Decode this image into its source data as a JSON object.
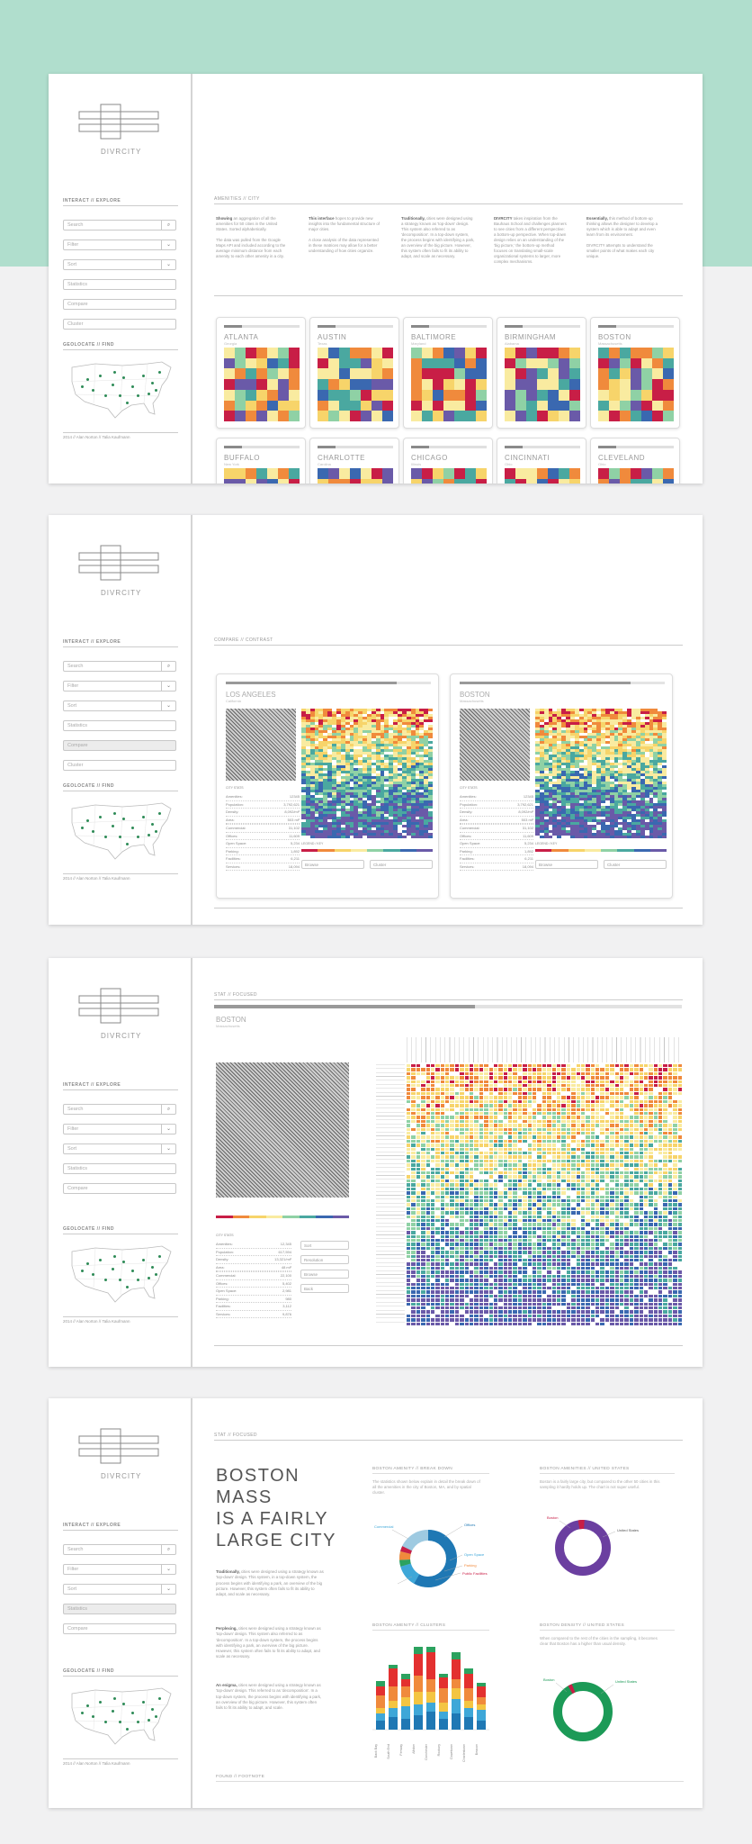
{
  "brand": "DIVRCITY",
  "sidebar": {
    "interact_label": "INTERACT // EXPLORE",
    "search": "Search",
    "filter": "Filter",
    "sort": "Sort",
    "statistics": "Statistics",
    "compare": "Compare",
    "cluster": "Cluster",
    "geolocate_label": "GEOLOCATE // FIND",
    "footer": "2014 // Alan Norton // Talia Kaufmann"
  },
  "icons": {
    "search": "search-icon",
    "chevron": "chevron-down-icon",
    "logo": "divrcity-logo"
  },
  "page1": {
    "header": "AMENITIES // CITY",
    "intro": [
      {
        "lead": "Showing",
        "text": "an aggregation of all the amenities for 50 cities in the United States. Sorted alphabetically.",
        "text2": "The data was pulled from the Google Maps API and included according to the average minimum distance from each amenity to each other amenity in a city."
      },
      {
        "lead": "This interface",
        "text": "hopes to provide new insights into the fundamental structure of major cities.",
        "text2": "A close analysis of the data represented in these matrices may allow for a better understanding of how cities organize."
      },
      {
        "lead": "Traditionally,",
        "text": "cities were designed using a strategy known as 'top-down' design. This system also referred to as 'decomposition'. In a top-down system, the process begins with identifying a park, an overview of the big picture. However, this system often fails to fit its ability to adapt, and scale as necessary."
      },
      {
        "lead": "DIVRCITY",
        "text": "takes inspiration from the Bauhaus School and challenges planners to see cities from a different perspective: a bottom-up perspective. When top-down design relies on an understanding of the 'big picture,' the bottom-up method focuses on translating small-scale organizational systems to larger, more complex mechanisms."
      },
      {
        "lead": "Essentially,",
        "text": "this method of bottom-up thinking allows the designer to develop a system which is able to adapt and even learn from its environment.",
        "text2": "DIVRCITY attempts to understand the smaller points of what makes each city unique."
      }
    ],
    "cities": [
      {
        "name": "ATLANTA",
        "state": "Georgia"
      },
      {
        "name": "AUSTIN",
        "state": "Texas"
      },
      {
        "name": "BALTIMORE",
        "state": "Maryland"
      },
      {
        "name": "BIRMINGHAM",
        "state": "Alabama"
      },
      {
        "name": "BOSTON",
        "state": "Massachusetts"
      },
      {
        "name": "BUFFALO",
        "state": "New York"
      },
      {
        "name": "CHARLOTTE",
        "state": "Carolina"
      },
      {
        "name": "CHICAGO",
        "state": "Illinois"
      },
      {
        "name": "CINCINNATI",
        "state": "Ohio"
      },
      {
        "name": "CLEVELAND",
        "state": "Ohio"
      }
    ]
  },
  "page2": {
    "header": "COMPARE // CONTRAST",
    "cities": [
      {
        "name": "LOS ANGELES",
        "state": "California"
      },
      {
        "name": "BOSTON",
        "state": "Massachusetts"
      }
    ],
    "stats_title": "CITY STATS",
    "stats": [
      [
        "Amenities:",
        "12345"
      ],
      [
        "Population:",
        "3,792,621"
      ],
      [
        "Density:",
        "8,092/mi²"
      ],
      [
        "Area:",
        "503 mi²"
      ],
      [
        "",
        ""
      ],
      [
        "Commercial:",
        "31,102"
      ],
      [
        "Offices:",
        "11,609"
      ],
      [
        "Open Space:",
        "5,234"
      ],
      [
        "Parking:",
        "1,892"
      ],
      [
        "Facilities:",
        "6,211"
      ],
      [
        "Services:",
        "18,094"
      ]
    ],
    "legend_title": "LEGEND / KEY",
    "buttons": [
      "Browse",
      "Cluster"
    ]
  },
  "page3": {
    "header": "STAT // FOCUSED",
    "city": "BOSTON",
    "state": "Massachusetts",
    "stats_title": "CITY STATS",
    "stats": [
      [
        "Amenities:",
        "12,345"
      ],
      [
        "Population:",
        "617,594"
      ],
      [
        "Density:",
        "13,321/mi²"
      ],
      [
        "Area:",
        "48 mi²"
      ],
      [
        "",
        ""
      ],
      [
        "Commercial:",
        "22,100"
      ],
      [
        "Offices:",
        "5,402"
      ],
      [
        "Open Space:",
        "2,981"
      ],
      [
        "Parking:",
        "980"
      ],
      [
        "Facilities:",
        "3,112"
      ],
      [
        "Services:",
        "9,876"
      ]
    ],
    "controls": [
      "Sort",
      "Resolution",
      "Browse",
      "Back"
    ]
  },
  "page4": {
    "header": "STAT // FOCUSED",
    "headline": [
      "BOSTON",
      "MASS",
      "IS A FAIRLY",
      "LARGE CITY"
    ],
    "paras": [
      {
        "lead": "Traditionally,",
        "text": "cities were designed using a strategy known as 'top-down' design. This system, in a top-down system, the process begins with identifying a park, an overview of the big picture. However, this system often fails to fit its ability to adapt, and scale as necessary."
      },
      {
        "lead": "Perplexing,",
        "text": "cities were designed using a strategy known as 'top-down' design. This system also referred to as 'decomposition'. In a top-down system, the process begins with identifying a park, an overview of the big picture. However, this system often fails to fit its ability to adapt, and scale as necessary."
      },
      {
        "lead": "An enigma,",
        "text": "cities were designed using a strategy known as 'top-down' design. This referred to as 'decomposition'. In a top-down system, the process begins with identifying a park, an overview of the big picture. However, this system often fails to fit its ability to adapt, and scale."
      }
    ],
    "footer": "FOUND // FOOTNOTE",
    "breakdown_title": "BOSTON AMENITY // BREAK DOWN",
    "breakdown_text": "The statistics shown below explain in detail the break down of all the amenities in the city of Boston, MA, and by spatial cluster.",
    "donut_labels": [
      "Commercial",
      "Offices",
      "Open Space",
      "Parking",
      "Public Facilities"
    ],
    "us_title": "BOSTON AMENITIES // UNITED STATES",
    "us_text": "Boston is a fairly large city, but compared to the other 50 cities in this sampling it hardly holds up. The chart is not super useful.",
    "us_labels": [
      "Boston",
      "United States"
    ],
    "clusters_title": "BOSTON AMENITY // CLUSTERS",
    "density_title": "BOSTON DENSITY // UNITED STATES",
    "density_text": "When compared to the rest of the cities in the sampling, it becomes clear that Boston has a higher than usual density.",
    "density_labels": [
      "Boston",
      "United States"
    ],
    "cluster_x": [
      "Back Bay",
      "South End",
      "Fenway",
      "Allston",
      "Dorchester",
      "Roxbury",
      "Downtown",
      "Charlestown",
      "Beacon"
    ]
  },
  "colors": {
    "mint": "#b0decd",
    "red": "#c81e46",
    "orange": "#f08a3c",
    "yellow": "#f7d46a",
    "lightyellow": "#f9eba0",
    "green": "#8fd1a5",
    "teal": "#4aa8a0",
    "blue": "#3a68b0",
    "purple": "#6a5aa8",
    "donut_blue": "#1f78b4",
    "us_purple": "#6b3fa0",
    "density_green": "#1c9a57"
  }
}
